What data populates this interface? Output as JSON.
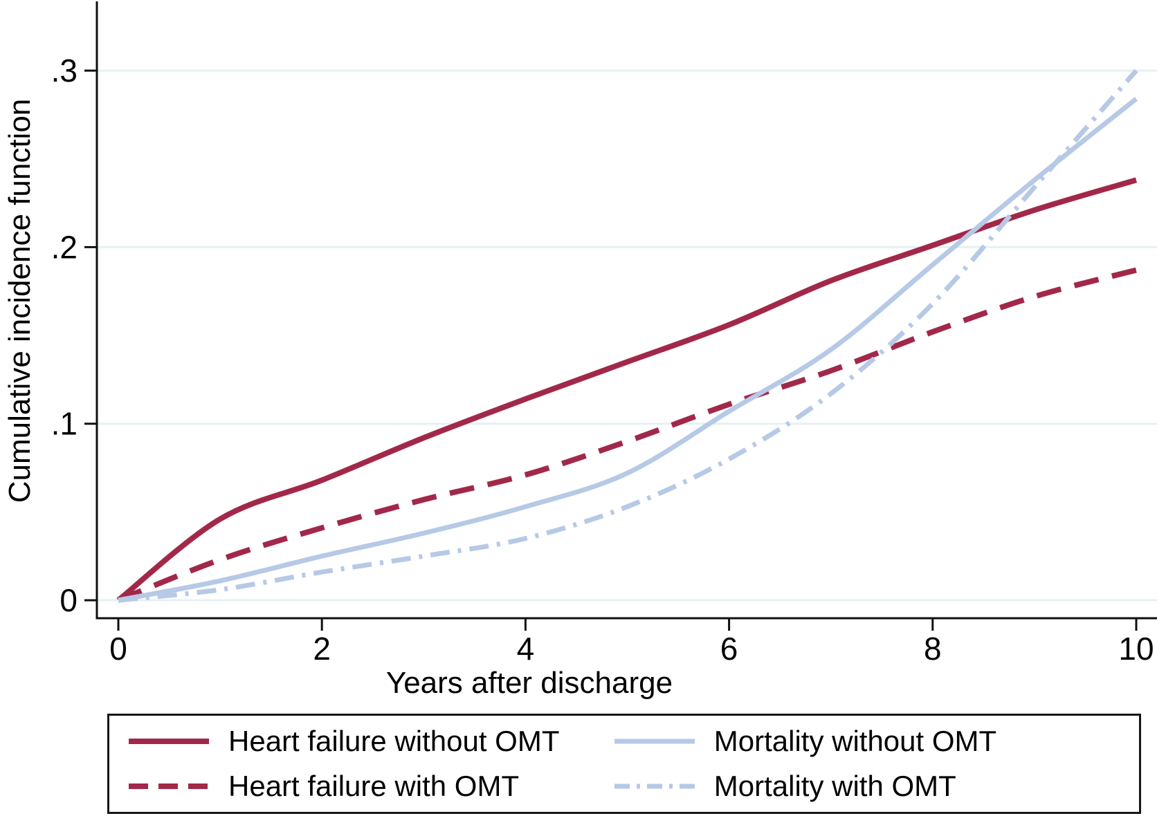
{
  "chart_data": {
    "type": "line",
    "title": "",
    "xlabel": "Years after discharge",
    "ylabel": "Cumulative incidence function",
    "x": [
      0,
      1,
      2,
      3,
      4,
      5,
      6,
      7,
      8,
      9,
      10
    ],
    "xlim": [
      0,
      10
    ],
    "ylim": [
      0,
      0.34
    ],
    "xticks": {
      "values": [
        0,
        2,
        4,
        6,
        8,
        10
      ],
      "labels": [
        "0",
        "2",
        "4",
        "6",
        "8",
        "10"
      ]
    },
    "yticks": {
      "values": [
        0,
        0.1,
        0.2,
        0.3
      ],
      "labels": [
        "0",
        ".1",
        ".2",
        ".3"
      ]
    },
    "grid": true,
    "legend_position": "bottom",
    "series": [
      {
        "name": "Heart failure without OMT",
        "style": "solid",
        "color": "#a2284a",
        "width": 8,
        "values": [
          0,
          0.046,
          0.068,
          0.092,
          0.114,
          0.135,
          0.156,
          0.181,
          0.201,
          0.221,
          0.238
        ]
      },
      {
        "name": "Heart failure with OMT",
        "style": "dash",
        "color": "#a2284a",
        "width": 8,
        "values": [
          0,
          0.023,
          0.041,
          0.057,
          0.071,
          0.09,
          0.111,
          0.13,
          0.152,
          0.172,
          0.187
        ]
      },
      {
        "name": "Mortality without OMT",
        "style": "solid",
        "color": "#b6c9e6",
        "width": 7,
        "values": [
          0,
          0.011,
          0.025,
          0.038,
          0.053,
          0.072,
          0.107,
          0.142,
          0.19,
          0.238,
          0.284
        ]
      },
      {
        "name": "Mortality with OMT",
        "style": "dashdot",
        "color": "#b6c9e6",
        "width": 7,
        "values": [
          0,
          0.006,
          0.016,
          0.025,
          0.035,
          0.053,
          0.08,
          0.117,
          0.168,
          0.234,
          0.3
        ]
      }
    ]
  },
  "colors": {
    "maroon": "#a2284a",
    "light_blue": "#b6c9e6",
    "gridline": "#e7f0f2",
    "axis": "#0f0f0f",
    "legend_border": "#161616",
    "background": "#ffffff"
  }
}
